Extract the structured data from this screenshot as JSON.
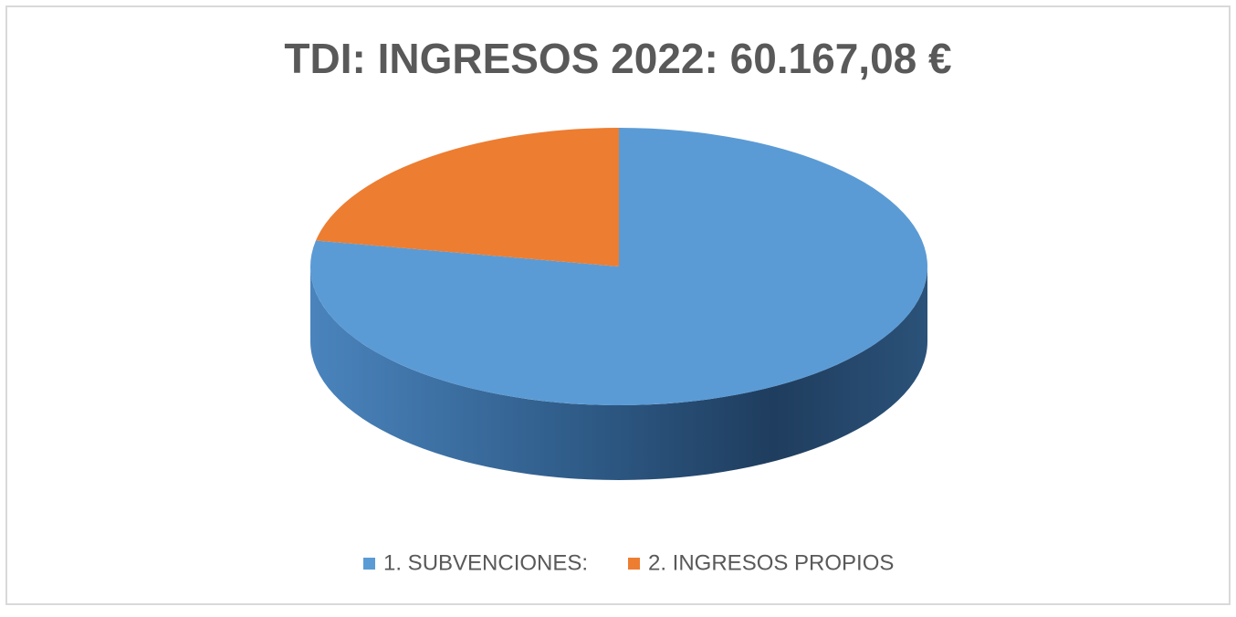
{
  "chart_data": {
    "type": "pie",
    "title": "TDI: INGRESOS 2022: 60.167,08 €",
    "categories": [
      "1. SUBVENCIONES:",
      "2. INGRESOS PROPIOS"
    ],
    "values": [
      78,
      22
    ],
    "colors": [
      "#5b9bd5",
      "#ed7d31"
    ]
  }
}
